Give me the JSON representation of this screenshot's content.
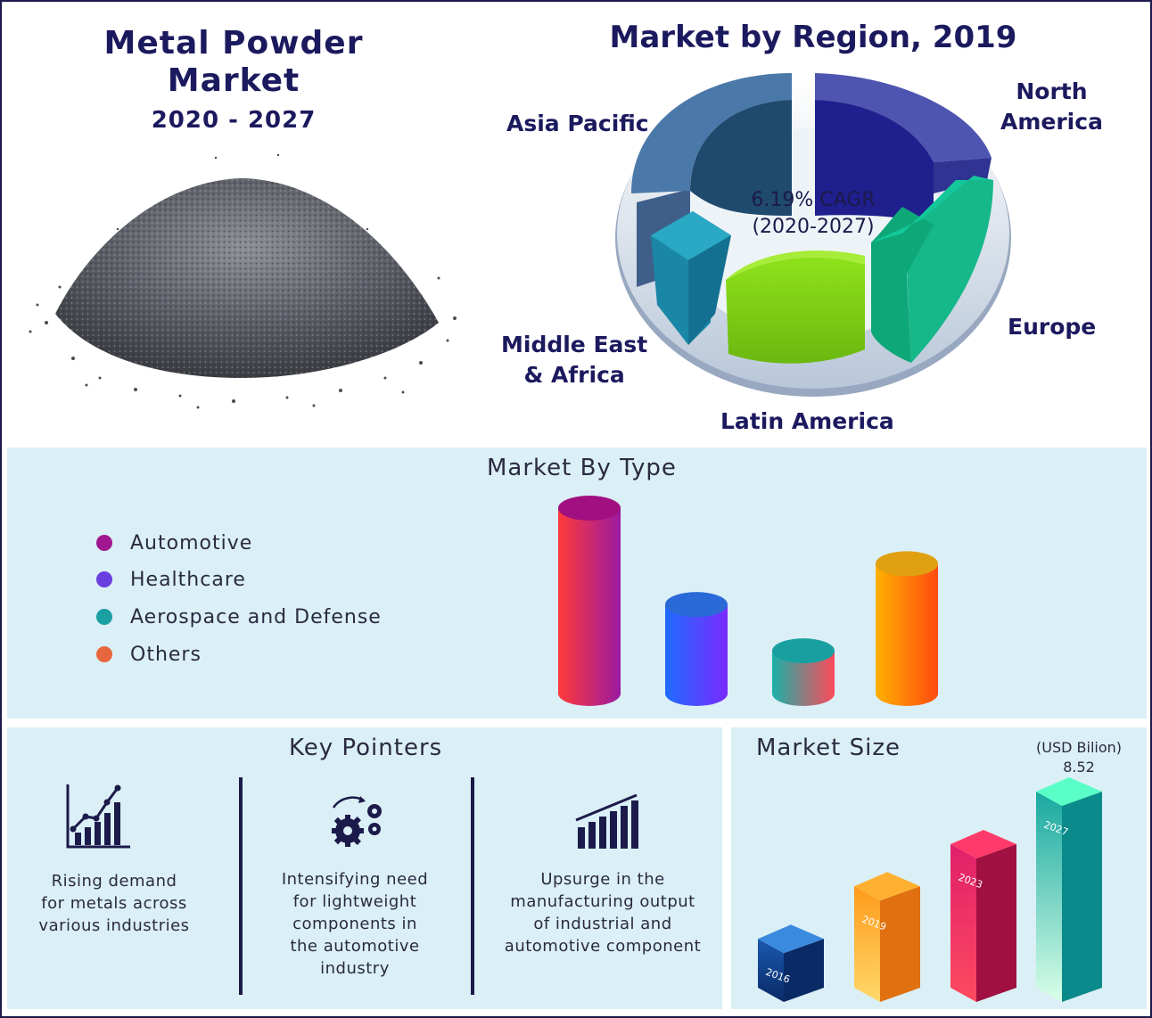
{
  "header": {
    "title_line1": "Metal Powder",
    "title_line2": "Market",
    "years": "2020 - 2027"
  },
  "region": {
    "title": "Market by Region, 2019",
    "cagr_line1": "6.19% CAGR",
    "cagr_line2": "(2020-2027)",
    "labels": {
      "north_america_1": "North",
      "north_america_2": "America",
      "asia_pacific": "Asia Pacific",
      "europe": "Europe",
      "mea_1": "Middle East",
      "mea_2": "& Africa",
      "latin_america": "Latin America"
    }
  },
  "type": {
    "title": "Market By Type",
    "legend": [
      {
        "label": "Automotive",
        "color": "#a0178f"
      },
      {
        "label": "Healthcare",
        "color": "#6a3fe0"
      },
      {
        "label": "Aerospace and Defense",
        "color": "#1a9fa3"
      },
      {
        "label": "Others",
        "color": "#e8663d"
      }
    ]
  },
  "pointers": {
    "title": "Key Pointers",
    "items": [
      {
        "line1": "Rising demand",
        "line2": "for metals across",
        "line3": "various industries"
      },
      {
        "line1": "Intensifying need",
        "line2": "for lightweight",
        "line3": "components in",
        "line4": "the automotive",
        "line5": "industry"
      },
      {
        "line1": "Upsurge in the",
        "line2": "manufacturing output",
        "line3": "of industrial and",
        "line4": "automotive component"
      }
    ]
  },
  "size": {
    "title": "Market Size",
    "unit": "(USD Bilion)",
    "value_label": "8.52"
  },
  "chart_data": [
    {
      "type": "pie",
      "title": "Market by Region, 2019",
      "categories": [
        "North America",
        "Europe",
        "Latin America",
        "Middle East & Africa",
        "Asia Pacific"
      ],
      "annotation": "6.19% CAGR (2020-2027)"
    },
    {
      "type": "bar",
      "title": "Market By Type",
      "categories": [
        "Automotive",
        "Healthcare",
        "Aerospace and Defense",
        "Others"
      ],
      "values": [
        100,
        48,
        23,
        70
      ]
    },
    {
      "type": "bar",
      "title": "Market Size",
      "ylabel": "USD Bilion",
      "categories": [
        "2016",
        "2019",
        "2023",
        "2027"
      ],
      "values": [
        null,
        null,
        null,
        8.52
      ],
      "relative_heights": [
        0.3,
        0.55,
        0.75,
        1.0
      ]
    }
  ]
}
